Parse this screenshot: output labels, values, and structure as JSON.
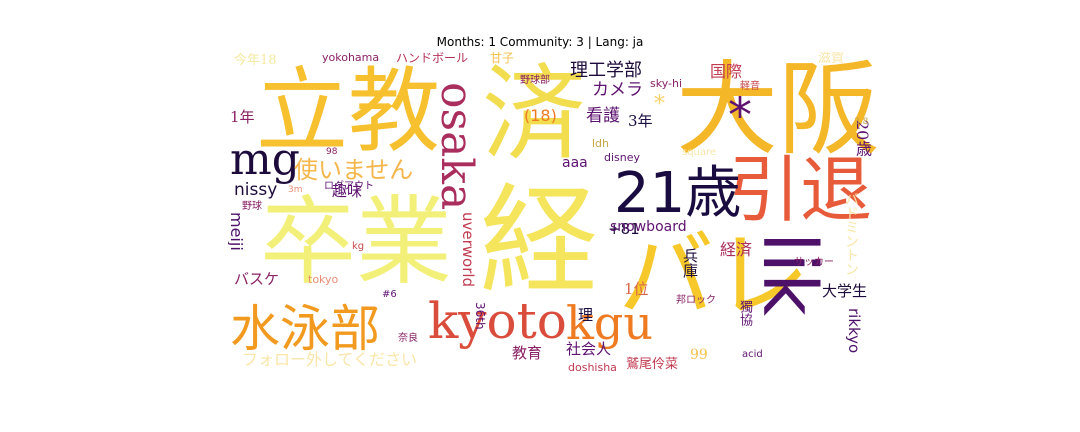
{
  "title": "Months: 1 Community: 3 | Lang: ja",
  "words": [
    {
      "text": "大阪",
      "color": "#f4b728"
    },
    {
      "text": "立教",
      "color": "#f6c02e"
    },
    {
      "text": "卒業",
      "color": "#f3f07a"
    },
    {
      "text": "経",
      "color": "#f5e55c"
    },
    {
      "text": "済",
      "color": "#f2dd4f"
    },
    {
      "text": "バレ",
      "color": "#f6c82a"
    },
    {
      "text": "lik",
      "color": "#4d1169"
    },
    {
      "text": "引退",
      "color": "#e75b3a"
    },
    {
      "text": "21歳",
      "color": "#1a0c40"
    },
    {
      "text": "kyoto",
      "color": "#da4c3b"
    },
    {
      "text": "kgu",
      "color": "#ee7a22"
    },
    {
      "text": "水泳部",
      "color": "#f29a1f"
    },
    {
      "text": "osaka",
      "color": "#a92d5d"
    },
    {
      "text": "mg",
      "color": "#1d0b3b"
    },
    {
      "text": "使いません",
      "color": "#f5b64b"
    },
    {
      "text": "*",
      "color": "#5e1370"
    },
    {
      "text": "理工学部",
      "color": "#1d0b3b"
    },
    {
      "text": "国際",
      "color": "#c03a50"
    },
    {
      "text": "カメラ",
      "color": "#5e1370"
    },
    {
      "text": "看護",
      "color": "#5e1370"
    },
    {
      "text": "3年",
      "color": "#1a0c40"
    },
    {
      "text": "*",
      "color": "#f7d470"
    },
    {
      "text": "20歳",
      "color": "#5e1370"
    },
    {
      "text": "1年",
      "color": "#8a2265"
    },
    {
      "text": "今年18",
      "color": "#f4e9a0"
    },
    {
      "text": "yokohama",
      "color": "#8a2265"
    },
    {
      "text": "ハンドボール",
      "color": "#b63358"
    },
    {
      "text": "甘子",
      "color": "#f5c04c"
    },
    {
      "text": "滋賀",
      "color": "#f9e6a8"
    },
    {
      "text": "sky-hi",
      "color": "#8a2265"
    },
    {
      "text": "野球部",
      "color": "#8a2265"
    },
    {
      "text": "軽音",
      "color": "#c84a4a"
    },
    {
      "text": "nissy",
      "color": "#1d0b3b"
    },
    {
      "text": "趣味",
      "color": "#5e1370"
    },
    {
      "text": "ログアウト",
      "color": "#5e1370"
    },
    {
      "text": "aaa",
      "color": "#5e1370"
    },
    {
      "text": "ldh",
      "color": "#c8a64a"
    },
    {
      "text": "disney",
      "color": "#5e1370"
    },
    {
      "text": "square",
      "color": "#f9e6a8"
    },
    {
      "text": "meiji",
      "color": "#4d1169"
    },
    {
      "text": "野球",
      "color": "#8a2265"
    },
    {
      "text": "uverworld",
      "color": "#c03a50"
    },
    {
      "text": "+81",
      "color": "#1d0b3b"
    },
    {
      "text": "snowboard",
      "color": "#5e1370"
    },
    {
      "text": "経済",
      "color": "#a92d5d"
    },
    {
      "text": "バドミントン",
      "color": "#f9e6a8"
    },
    {
      "text": "兵庫",
      "color": "#1d0b3b"
    },
    {
      "text": "バスケ",
      "color": "#8a2265"
    },
    {
      "text": "tokyo",
      "color": "#e88e76"
    },
    {
      "text": "kg",
      "color": "#c84a4a"
    },
    {
      "text": "36th",
      "color": "#5e1370"
    },
    {
      "text": "1位",
      "color": "#d9654a"
    },
    {
      "text": "大学生",
      "color": "#1d0b3b"
    },
    {
      "text": "(18)",
      "color": "#ee7a22"
    },
    {
      "text": "rikkyo",
      "color": "#4d1169"
    },
    {
      "text": "サッカー",
      "color": "#8a2265"
    },
    {
      "text": "邦ロック",
      "color": "#8a2265"
    },
    {
      "text": "獨協",
      "color": "#5e1370"
    },
    {
      "text": "理",
      "color": "#1a0c40"
    },
    {
      "text": "教育",
      "color": "#8a2265"
    },
    {
      "text": "社会人",
      "color": "#5e1370"
    },
    {
      "text": "鷲尾伶菜",
      "color": "#c03a50"
    },
    {
      "text": "doshisha",
      "color": "#c03a50"
    },
    {
      "text": "acid",
      "color": "#5e1370"
    },
    {
      "text": "奈良",
      "color": "#8a2265"
    },
    {
      "text": "#6",
      "color": "#5e1370"
    },
    {
      "text": "フォロー外してください",
      "color": "#f9e6a8"
    },
    {
      "text": "99",
      "color": "#f5c04c"
    },
    {
      "text": "3.8",
      "color": "#c8a64a"
    },
    {
      "text": "98",
      "color": "#8a2265"
    },
    {
      "text": "3m",
      "color": "#e88e76"
    }
  ]
}
